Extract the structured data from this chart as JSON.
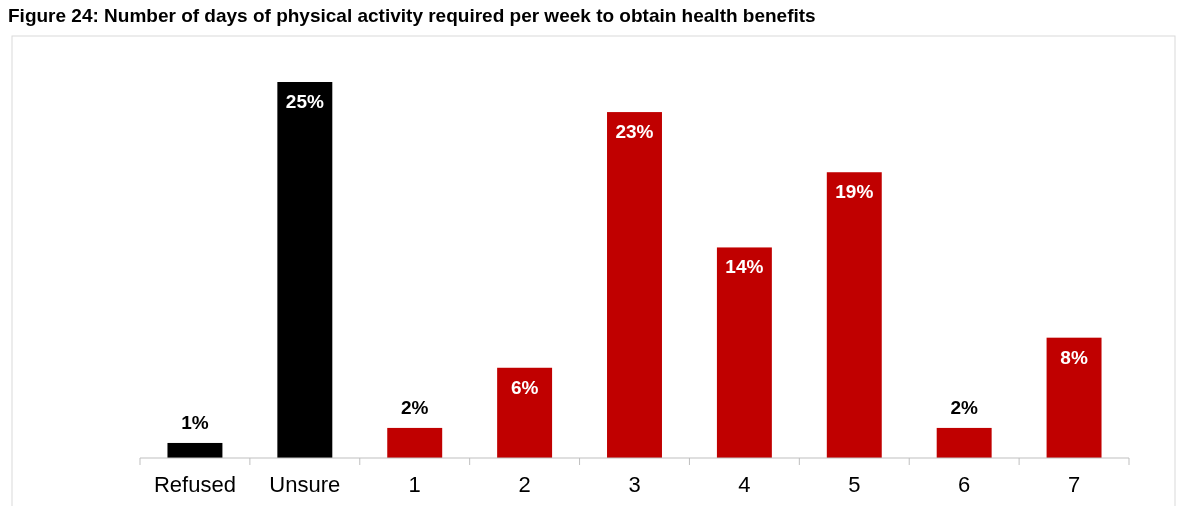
{
  "chart_data": {
    "type": "bar",
    "title": "Figure 24: Number of days of physical activity required per week to obtain health benefits",
    "categories": [
      "Refused",
      "Unsure",
      "1",
      "2",
      "3",
      "4",
      "5",
      "6",
      "7"
    ],
    "values": [
      1,
      25,
      2,
      6,
      23,
      14,
      19,
      2,
      8
    ],
    "colors": [
      "#000000",
      "#000000",
      "#c00000",
      "#c00000",
      "#c00000",
      "#c00000",
      "#c00000",
      "#c00000",
      "#c00000"
    ],
    "value_labels": [
      "1%",
      "25%",
      "2%",
      "6%",
      "23%",
      "14%",
      "19%",
      "2%",
      "8%"
    ],
    "relative": false
  }
}
